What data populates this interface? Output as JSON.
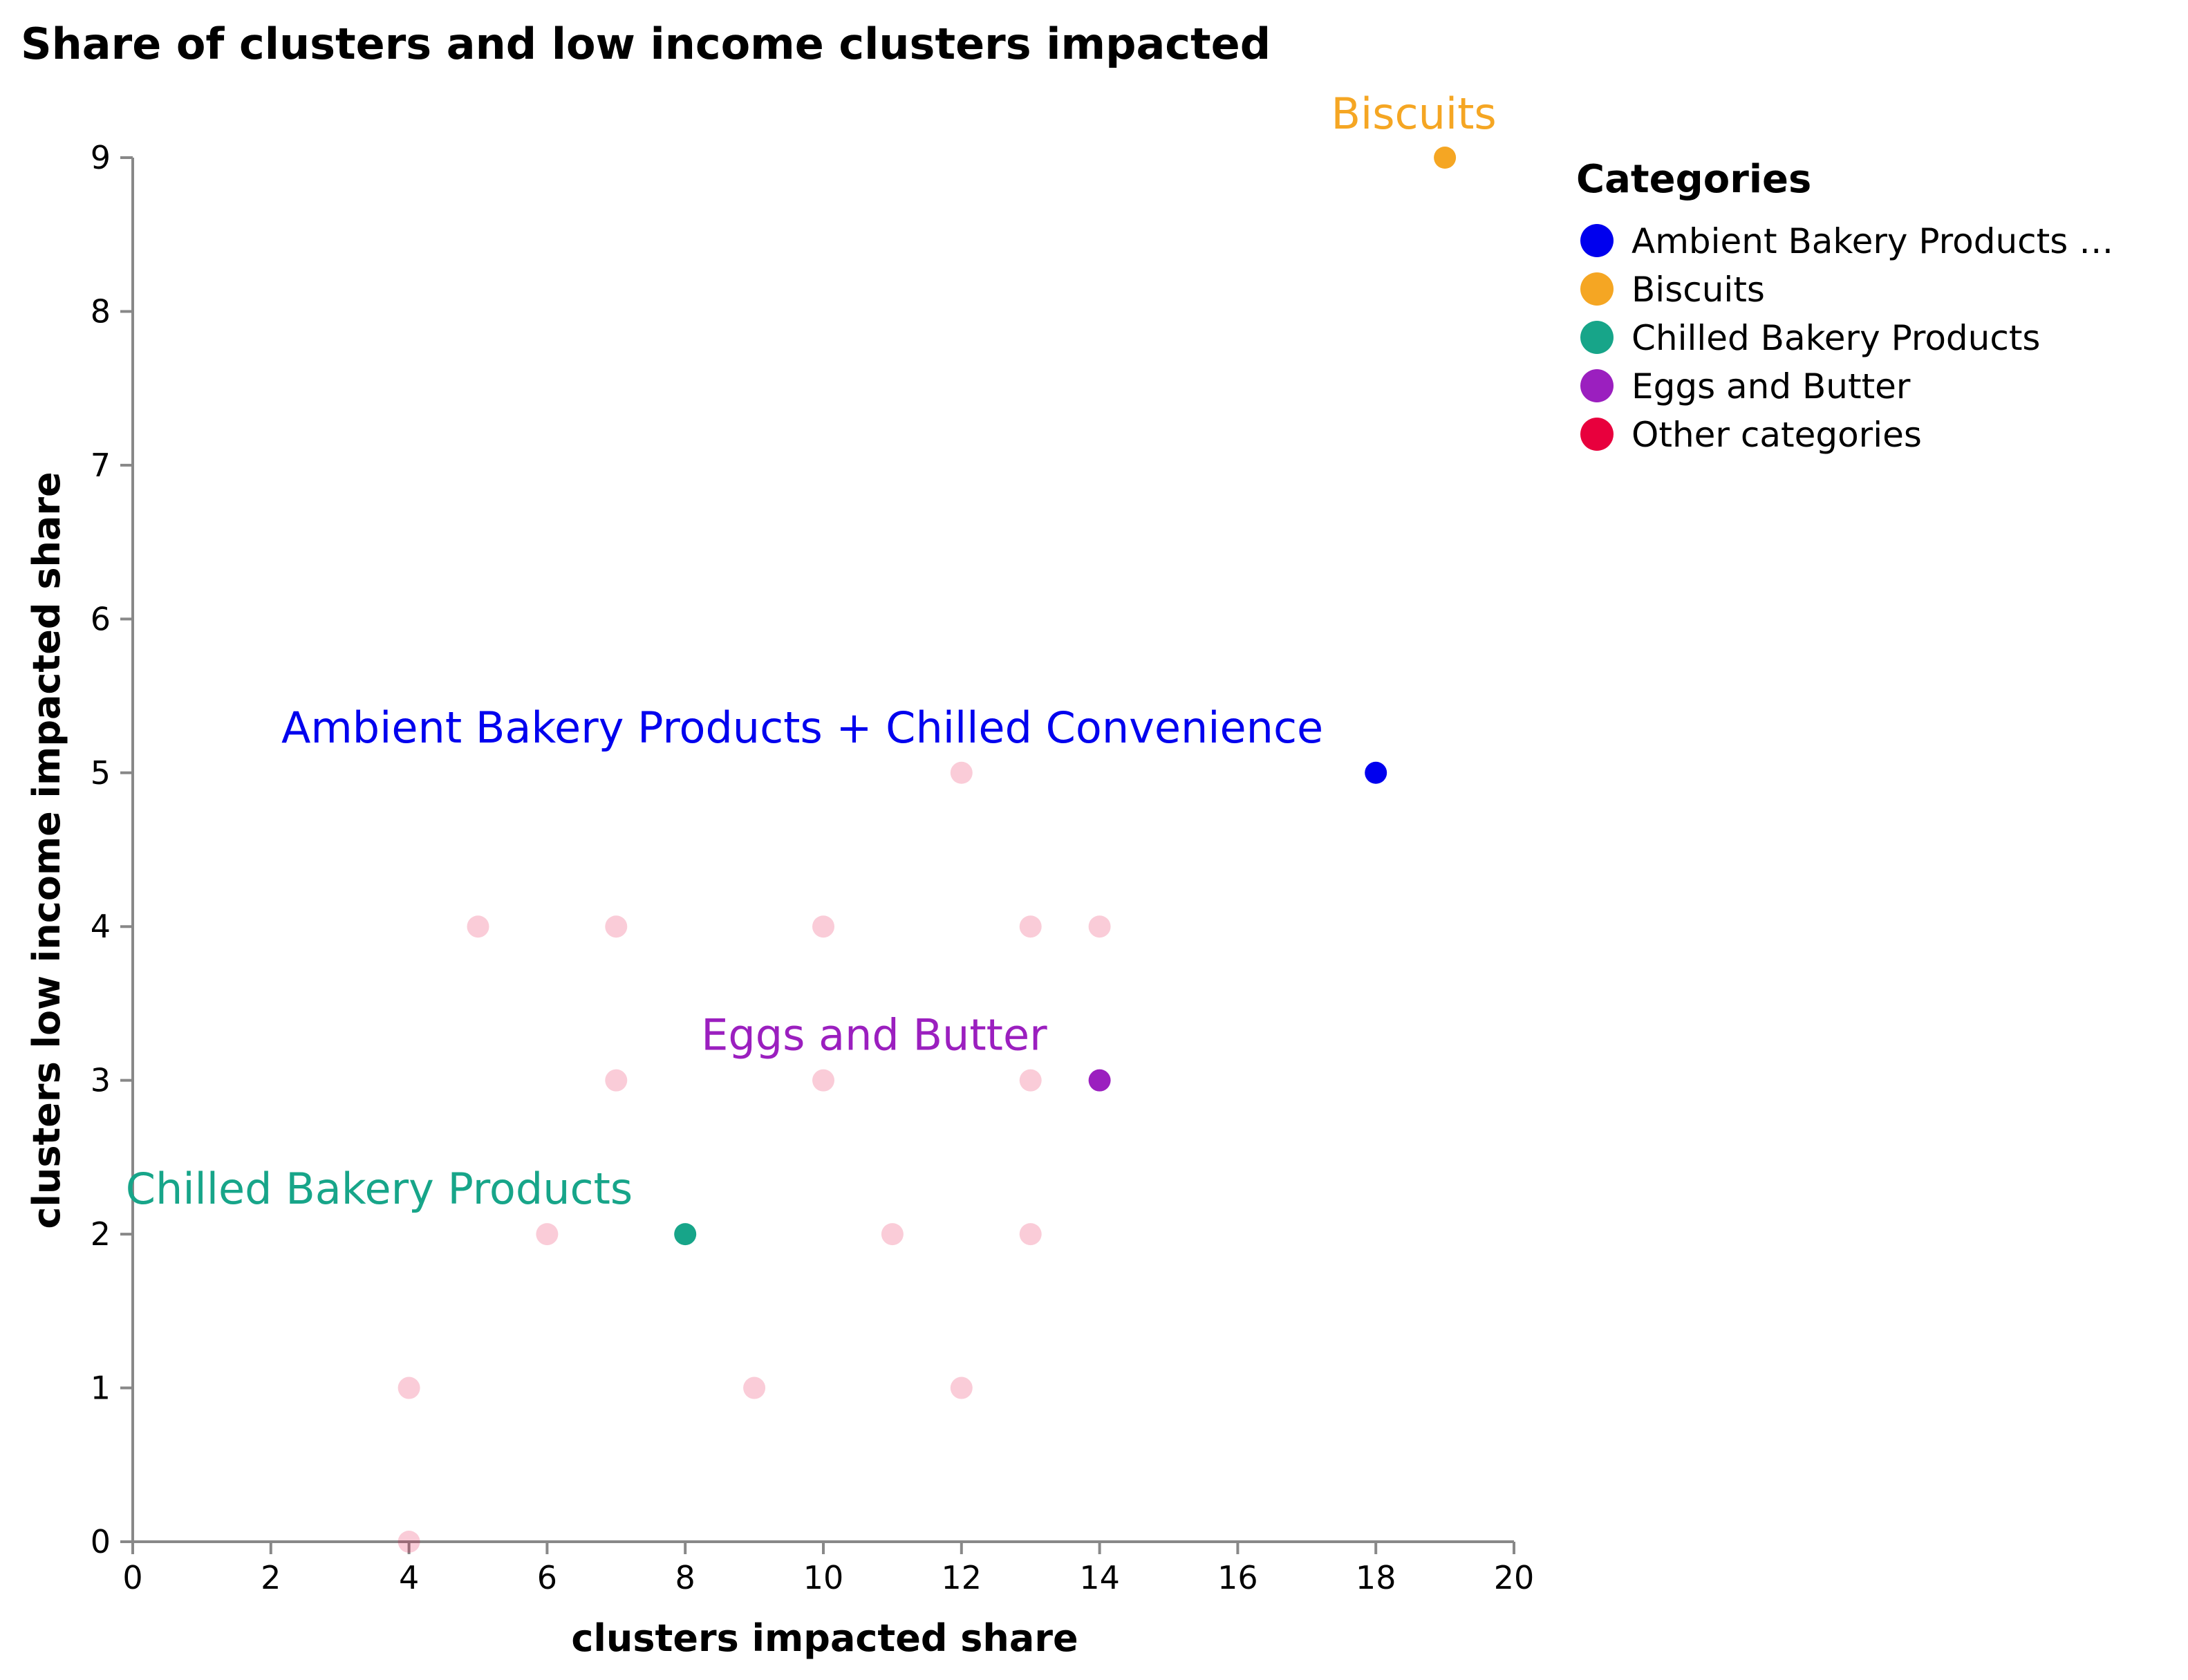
{
  "chart_data": {
    "type": "scatter",
    "title": "Share of clusters and low income clusters impacted",
    "xlabel": "clusters impacted share",
    "ylabel": "clusters low income impacted share",
    "xlim": [
      0,
      20
    ],
    "ylim": [
      0,
      9
    ],
    "x_ticks": [
      "0",
      "2",
      "4",
      "6",
      "8",
      "10",
      "12",
      "14",
      "16",
      "18",
      "20"
    ],
    "y_ticks": [
      "0",
      "1",
      "2",
      "3",
      "4",
      "5",
      "6",
      "7",
      "8",
      "9"
    ],
    "grid": false,
    "legend": {
      "title": "Categories",
      "position": "right",
      "entries": [
        {
          "label": "Ambient Bakery Products …",
          "color": "#0000ee"
        },
        {
          "label": "Biscuits",
          "color": "#f5a623"
        },
        {
          "label": "Chilled Bakery Products",
          "color": "#17a589"
        },
        {
          "label": "Eggs and Butter",
          "color": "#9b1fbf"
        },
        {
          "label": "Other categories",
          "color": "#e8003d"
        }
      ]
    },
    "series": [
      {
        "category": "Ambient Bakery Products + Chilled Convenience",
        "color": "#0000ee",
        "points": [
          {
            "x": 18,
            "y": 5
          }
        ]
      },
      {
        "category": "Biscuits",
        "color": "#f5a623",
        "points": [
          {
            "x": 19,
            "y": 9
          }
        ]
      },
      {
        "category": "Chilled Bakery Products",
        "color": "#17a589",
        "points": [
          {
            "x": 8,
            "y": 2
          }
        ]
      },
      {
        "category": "Eggs and Butter",
        "color": "#9b1fbf",
        "points": [
          {
            "x": 14,
            "y": 3
          }
        ]
      },
      {
        "category": "Other categories",
        "color": "#e8003d",
        "points": [
          {
            "x": 4,
            "y": 0
          },
          {
            "x": 4,
            "y": 1
          },
          {
            "x": 6,
            "y": 2
          },
          {
            "x": 11,
            "y": 2
          },
          {
            "x": 13,
            "y": 2
          },
          {
            "x": 9,
            "y": 1
          },
          {
            "x": 12,
            "y": 1
          },
          {
            "x": 7,
            "y": 3
          },
          {
            "x": 10,
            "y": 3
          },
          {
            "x": 13,
            "y": 3
          },
          {
            "x": 5,
            "y": 4
          },
          {
            "x": 7,
            "y": 4
          },
          {
            "x": 10,
            "y": 4
          },
          {
            "x": 13,
            "y": 4
          },
          {
            "x": 14,
            "y": 4
          },
          {
            "x": 12,
            "y": 5
          }
        ]
      }
    ],
    "annotations": [
      {
        "text": "Biscuits",
        "x": 19,
        "y": 9,
        "color": "#f5a623"
      },
      {
        "text": "Ambient Bakery Products + Chilled Convenience",
        "x": 18,
        "y": 5,
        "color": "#0000ee"
      },
      {
        "text": "Eggs and Butter",
        "x": 14,
        "y": 3,
        "color": "#9b1fbf"
      },
      {
        "text": "Chilled Bakery Products",
        "x": 8,
        "y": 2,
        "color": "#17a589"
      }
    ]
  }
}
